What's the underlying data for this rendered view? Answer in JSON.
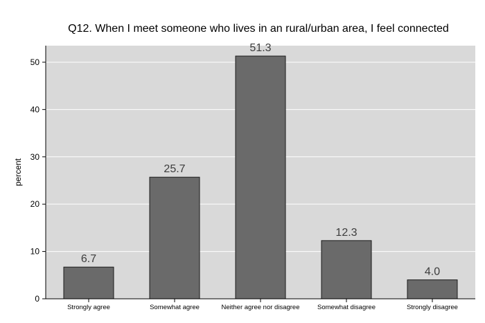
{
  "chart_data": {
    "type": "bar",
    "title": "Q12. When I meet someone who lives in an rural/urban area, I feel connected",
    "xlabel": "",
    "ylabel": "percent",
    "categories": [
      "Strongly agree",
      "Somewhat agree",
      "Neither agree nor disagree",
      "Somewhat disagree",
      "Strongly disagree"
    ],
    "values": [
      6.7,
      25.7,
      51.3,
      12.3,
      4.0
    ],
    "data_labels": [
      "6.7",
      "25.7",
      "51.3",
      "12.3",
      "4.0"
    ],
    "ylim": [
      0,
      53.5
    ],
    "yticks": [
      0,
      10,
      20,
      30,
      40,
      50
    ],
    "grid": true,
    "colors": {
      "plot_background": "#d9d9d9",
      "bar_fill": "#6a6a6a",
      "bar_stroke": "#1a1a1a",
      "gridline": "#ffffff",
      "data_label": "#3c3c3c"
    }
  }
}
